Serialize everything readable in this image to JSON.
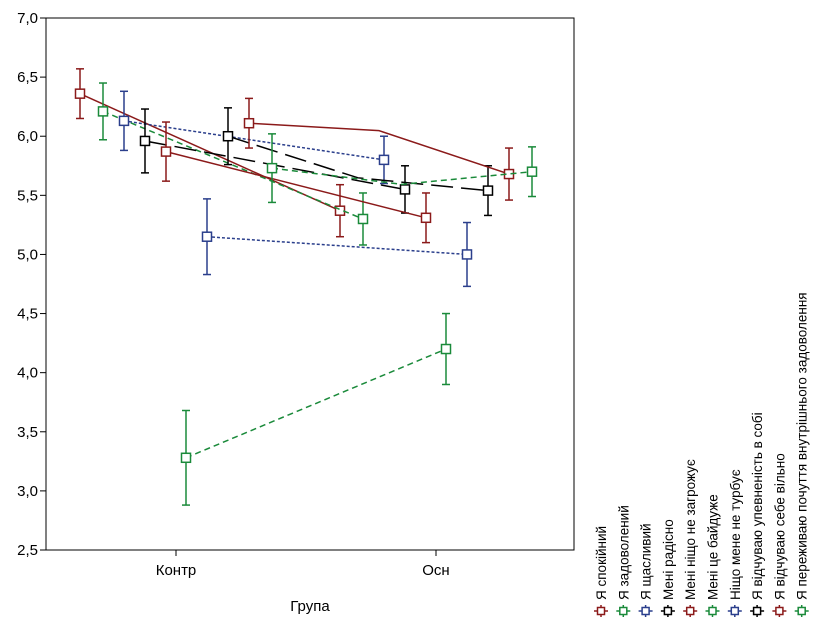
{
  "chart_data": {
    "type": "line",
    "xlabel": "Група",
    "ylabel": "",
    "categories": [
      "Контр",
      "Осн"
    ],
    "ylim": [
      2.5,
      7.0
    ],
    "yticks": [
      "2,5",
      "3,0",
      "3,5",
      "4,0",
      "4,5",
      "5,0",
      "5,5",
      "6,0",
      "6,5",
      "7,0"
    ],
    "error_bars": true,
    "grid": false,
    "legend_position": "right, vertical",
    "series": [
      {
        "name": "Я спокійний",
        "values": [
          6.36,
          5.37
        ],
        "err": [
          0.21,
          0.22
        ],
        "color": "#8b1a1a",
        "dash": "solid"
      },
      {
        "name": "Я задоволений",
        "values": [
          6.21,
          5.3
        ],
        "err": [
          0.24,
          0.22
        ],
        "color": "#1a8a3a",
        "dash": "6,4"
      },
      {
        "name": "Я щасливий",
        "values": [
          6.13,
          5.8
        ],
        "err": [
          0.25,
          0.2
        ],
        "color": "#2b3f8c",
        "dash": "3,2"
      },
      {
        "name": "Мені радісно",
        "values": [
          5.96,
          5.55
        ],
        "err": [
          0.27,
          0.2
        ],
        "color": "#000000",
        "dash": "22,8"
      },
      {
        "name": "Мені ніщо не загрожує",
        "values": [
          5.87,
          5.31
        ],
        "err": [
          0.25,
          0.21
        ],
        "color": "#8b1a1a",
        "dash": "solid"
      },
      {
        "name": "Мені це байдуже",
        "values": [
          3.28,
          4.2
        ],
        "err": [
          0.4,
          0.3
        ],
        "color": "#1a8a3a",
        "dash": "6,4"
      },
      {
        "name": "Ніщо мене не турбує",
        "values": [
          5.15,
          5.0
        ],
        "err": [
          0.32,
          0.27
        ],
        "color": "#2b3f8c",
        "dash": "3,2"
      },
      {
        "name": "Я відчуваю упевненість в собі",
        "values": [
          6.0,
          5.54
        ],
        "err": [
          0.24,
          0.21
        ],
        "color": "#000000",
        "dash": "22,8"
      },
      {
        "name": "Я відчуваю себе вільно",
        "values": [
          6.11,
          5.68
        ],
        "err": [
          0.21,
          0.22
        ],
        "color": "#8b1a1a",
        "dash": "solid"
      },
      {
        "name": "Я переживаю почуття внутрішнього задоволення",
        "values": [
          5.73,
          5.7
        ],
        "err": [
          0.29,
          0.21
        ],
        "color": "#1a8a3a",
        "dash": "6,4"
      }
    ]
  }
}
